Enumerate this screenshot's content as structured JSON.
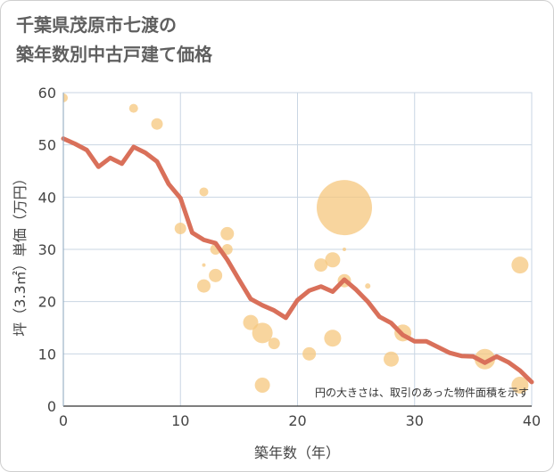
{
  "title_lines": [
    "千葉県茂原市七渡の",
    "築年数別中古戸建て価格"
  ],
  "chart_data": {
    "type": "scatter",
    "title": "千葉県茂原市七渡の築年数別中古戸建て価格",
    "xlabel": "築年数（年）",
    "ylabel": "坪（3.3㎡）単価（万円）",
    "xlim": [
      0,
      40
    ],
    "ylim": [
      0,
      60
    ],
    "xticks": [
      "0",
      "10",
      "20",
      "30",
      "40"
    ],
    "yticks": [
      "0",
      "10",
      "20",
      "30",
      "40",
      "50",
      "60"
    ],
    "grid": true,
    "note": "円の大きさは、取引のあった物件面積を示す",
    "series": [
      {
        "kind": "bubble",
        "color": "#f5c77e",
        "points": [
          {
            "x": 0,
            "y": 59,
            "size": 1
          },
          {
            "x": 6,
            "y": 57,
            "size": 1
          },
          {
            "x": 8,
            "y": 54,
            "size": 1.3
          },
          {
            "x": 10,
            "y": 34,
            "size": 1.3
          },
          {
            "x": 12,
            "y": 41,
            "size": 1
          },
          {
            "x": 12,
            "y": 27,
            "size": 0.4
          },
          {
            "x": 12,
            "y": 23,
            "size": 1.5
          },
          {
            "x": 13,
            "y": 25,
            "size": 1.5
          },
          {
            "x": 13,
            "y": 30,
            "size": 1.2
          },
          {
            "x": 14,
            "y": 33,
            "size": 1.5
          },
          {
            "x": 14,
            "y": 30,
            "size": 1.2
          },
          {
            "x": 16,
            "y": 16,
            "size": 1.7
          },
          {
            "x": 17,
            "y": 14,
            "size": 2.3
          },
          {
            "x": 17,
            "y": 4,
            "size": 1.7
          },
          {
            "x": 18,
            "y": 12,
            "size": 1.3
          },
          {
            "x": 21,
            "y": 10,
            "size": 1.5
          },
          {
            "x": 22,
            "y": 27,
            "size": 1.5
          },
          {
            "x": 23,
            "y": 28,
            "size": 1.7
          },
          {
            "x": 23,
            "y": 13,
            "size": 1.9
          },
          {
            "x": 24,
            "y": 38,
            "size": 6.2
          },
          {
            "x": 24,
            "y": 30,
            "size": 0.4
          },
          {
            "x": 24,
            "y": 24,
            "size": 1.5
          },
          {
            "x": 26,
            "y": 23,
            "size": 0.6
          },
          {
            "x": 28,
            "y": 9,
            "size": 1.7
          },
          {
            "x": 29,
            "y": 14,
            "size": 1.9
          },
          {
            "x": 36,
            "y": 9,
            "size": 2.3
          },
          {
            "x": 39,
            "y": 27,
            "size": 1.9
          },
          {
            "x": 39,
            "y": 4,
            "size": 1.9
          }
        ]
      },
      {
        "kind": "line",
        "color": "#d9705a",
        "points": [
          {
            "x": 0,
            "y": 51.2
          },
          {
            "x": 1,
            "y": 50.2
          },
          {
            "x": 2,
            "y": 49
          },
          {
            "x": 3,
            "y": 45.8
          },
          {
            "x": 4,
            "y": 47.5
          },
          {
            "x": 5,
            "y": 46.4
          },
          {
            "x": 6,
            "y": 49.6
          },
          {
            "x": 7,
            "y": 48.5
          },
          {
            "x": 8,
            "y": 46.8
          },
          {
            "x": 9,
            "y": 42.5
          },
          {
            "x": 10,
            "y": 39.8
          },
          {
            "x": 11,
            "y": 33.2
          },
          {
            "x": 12,
            "y": 31.8
          },
          {
            "x": 13,
            "y": 31.2
          },
          {
            "x": 14,
            "y": 28
          },
          {
            "x": 15,
            "y": 24.2
          },
          {
            "x": 16,
            "y": 20.5
          },
          {
            "x": 17,
            "y": 19.3
          },
          {
            "x": 18,
            "y": 18.3
          },
          {
            "x": 19,
            "y": 16.9
          },
          {
            "x": 20,
            "y": 20.3
          },
          {
            "x": 21,
            "y": 22.1
          },
          {
            "x": 22,
            "y": 22.9
          },
          {
            "x": 23,
            "y": 21.9
          },
          {
            "x": 24,
            "y": 24.2
          },
          {
            "x": 25,
            "y": 22.3
          },
          {
            "x": 26,
            "y": 20
          },
          {
            "x": 27,
            "y": 17.1
          },
          {
            "x": 28,
            "y": 15.9
          },
          {
            "x": 29,
            "y": 13.6
          },
          {
            "x": 30,
            "y": 12.4
          },
          {
            "x": 31,
            "y": 12.4
          },
          {
            "x": 32,
            "y": 11.3
          },
          {
            "x": 33,
            "y": 10.2
          },
          {
            "x": 34,
            "y": 9.6
          },
          {
            "x": 35,
            "y": 9.5
          },
          {
            "x": 36,
            "y": 8.3
          },
          {
            "x": 37,
            "y": 9.5
          },
          {
            "x": 38,
            "y": 8.4
          },
          {
            "x": 39,
            "y": 6.8
          },
          {
            "x": 40,
            "y": 4.6
          }
        ]
      }
    ]
  }
}
